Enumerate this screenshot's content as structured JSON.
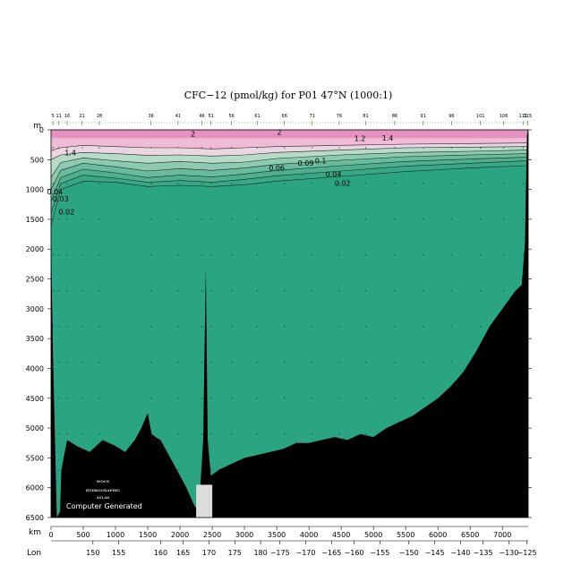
{
  "chart_data": {
    "type": "heatmap",
    "title": "CFC−12 (pmol/kg) for P01 47°N (1000:1)",
    "ylabel": "m",
    "xlabel": "km",
    "lon_label": "Lon",
    "ylim": [
      6500,
      0
    ],
    "xlim": [
      0,
      7400
    ],
    "depth_ticks": [
      "0",
      "500",
      "1000",
      "1500",
      "2000",
      "2500",
      "3000",
      "3500",
      "4000",
      "4500",
      "5000",
      "5500",
      "6000",
      "6500"
    ],
    "km_ticks": [
      "0",
      "500",
      "1000",
      "1500",
      "2000",
      "2500",
      "3000",
      "3500",
      "4000",
      "4500",
      "5000",
      "5500",
      "6000",
      "6500",
      "7000"
    ],
    "lon_ticks": [
      {
        "label": "150",
        "km": 650
      },
      {
        "label": "155",
        "km": 1050
      },
      {
        "label": "160",
        "km": 1700
      },
      {
        "label": "165",
        "km": 2050
      },
      {
        "label": "170",
        "km": 2450
      },
      {
        "label": "175",
        "km": 2850
      },
      {
        "label": "180",
        "km": 3250
      },
      {
        "label": "−175",
        "km": 3550
      },
      {
        "label": "−170",
        "km": 3950
      },
      {
        "label": "−165",
        "km": 4350
      },
      {
        "label": "−160",
        "km": 4700
      },
      {
        "label": "−155",
        "km": 5100
      },
      {
        "label": "−150",
        "km": 5550
      },
      {
        "label": "−145",
        "km": 5950
      },
      {
        "label": "−140",
        "km": 6350
      },
      {
        "label": "−135",
        "km": 6700
      },
      {
        "label": "−130",
        "km": 7100
      },
      {
        "label": "−125",
        "km": 7380
      }
    ],
    "station_labels": [
      {
        "label": "5",
        "km": 30
      },
      {
        "label": "11",
        "km": 120
      },
      {
        "label": "16",
        "km": 250
      },
      {
        "label": "21",
        "km": 480
      },
      {
        "label": "28",
        "km": 750
      },
      {
        "label": "36",
        "km": 1550
      },
      {
        "label": "41",
        "km": 1970
      },
      {
        "label": "46",
        "km": 2340
      },
      {
        "label": "51",
        "km": 2480
      },
      {
        "label": "56",
        "km": 2800
      },
      {
        "label": "61",
        "km": 3200
      },
      {
        "label": "66",
        "km": 3620
      },
      {
        "label": "71",
        "km": 4050
      },
      {
        "label": "76",
        "km": 4470
      },
      {
        "label": "81",
        "km": 4880
      },
      {
        "label": "86",
        "km": 5330
      },
      {
        "label": "91",
        "km": 5770
      },
      {
        "label": "96",
        "km": 6210
      },
      {
        "label": "101",
        "km": 6660
      },
      {
        "label": "106",
        "km": 7020
      },
      {
        "label": "111",
        "km": 7320
      },
      {
        "label": "115",
        "km": 7390
      }
    ],
    "contour_labels": [
      {
        "label": "2",
        "km": 2200,
        "depth": 110
      },
      {
        "label": "2",
        "km": 3540,
        "depth": 80
      },
      {
        "label": "1.4",
        "km": 300,
        "depth": 430
      },
      {
        "label": "1.4",
        "km": 5220,
        "depth": 180
      },
      {
        "label": "1.2",
        "km": 4790,
        "depth": 190
      },
      {
        "label": "0.06",
        "km": 3500,
        "depth": 680
      },
      {
        "label": "0.09",
        "km": 3950,
        "depth": 600
      },
      {
        "label": "0.1",
        "km": 4180,
        "depth": 560
      },
      {
        "label": "0.04",
        "km": 4380,
        "depth": 790
      },
      {
        "label": "0.02",
        "km": 4520,
        "depth": 940
      },
      {
        "label": "0.04",
        "km": 60,
        "depth": 1080
      },
      {
        "label": "0.03",
        "km": 150,
        "depth": 1200
      },
      {
        "label": "0.02",
        "km": 240,
        "depth": 1420
      }
    ],
    "colors": {
      "deep": "#2ba482",
      "bands": [
        "#2ba482",
        "#37a886",
        "#4cb08f",
        "#68bc9e",
        "#8ccbb1",
        "#b6dbc7",
        "#ead6e1",
        "#f0bbd6",
        "#e591c1"
      ],
      "bathymetry": "#000000",
      "missing": "#dcdcdc"
    },
    "bathymetry_km": [
      0,
      30,
      90,
      140,
      160,
      250,
      400,
      600,
      800,
      1000,
      1150,
      1300,
      1400,
      1500,
      1560,
      1620,
      1700,
      1800,
      1900,
      2000,
      2100,
      2200,
      2280,
      2320,
      2360,
      2400,
      2430,
      2480,
      2600,
      2800,
      3000,
      3200,
      3400,
      3600,
      3800,
      4000,
      4200,
      4400,
      4600,
      4800,
      5000,
      5200,
      5400,
      5600,
      5800,
      6000,
      6200,
      6400,
      6600,
      6800,
      7000,
      7200,
      7300,
      7350,
      7380
    ],
    "bathymetry_depth": [
      1800,
      3800,
      6500,
      6400,
      5700,
      5200,
      5300,
      5400,
      5200,
      5300,
      5400,
      5200,
      5000,
      4750,
      5100,
      5150,
      5200,
      5400,
      5600,
      5800,
      6000,
      6250,
      6400,
      5900,
      5200,
      2300,
      5200,
      5800,
      5700,
      5600,
      5500,
      5450,
      5400,
      5350,
      5250,
      5250,
      5200,
      5150,
      5200,
      5100,
      5150,
      5000,
      4900,
      4800,
      4650,
      4500,
      4300,
      4050,
      3700,
      3300,
      3000,
      2700,
      2600,
      1900,
      100
    ],
    "contour_lines": [
      {
        "depths": [
          350,
          300,
          260,
          280,
          300,
          300,
          320,
          300,
          280,
          260,
          240,
          230,
          220
        ]
      },
      {
        "depths": [
          500,
          420,
          380,
          400,
          430,
          420,
          440,
          420,
          380,
          340,
          300,
          290,
          280
        ]
      },
      {
        "depths": [
          800,
          550,
          470,
          520,
          560,
          530,
          560,
          540,
          480,
          420,
          380,
          360,
          340
        ]
      },
      {
        "depths": [
          1000,
          680,
          560,
          620,
          690,
          650,
          680,
          640,
          580,
          510,
          450,
          420,
          400
        ]
      },
      {
        "depths": [
          1200,
          800,
          660,
          720,
          800,
          760,
          790,
          740,
          680,
          600,
          530,
          490,
          460
        ]
      },
      {
        "depths": [
          1400,
          900,
          760,
          810,
          880,
          850,
          880,
          830,
          770,
          690,
          610,
          560,
          520
        ]
      },
      {
        "depths": [
          1600,
          1000,
          860,
          880,
          950,
          930,
          950,
          920,
          860,
          780,
          700,
          640,
          600
        ]
      }
    ],
    "contour_km": [
      0,
      150,
      500,
      1000,
      1500,
      2000,
      2500,
      3000,
      3500,
      4500,
      5500,
      6500,
      7380
    ]
  },
  "logo": {
    "line1": "WOCE",
    "line2": "HYDROGRAPHIC",
    "line3": "ATLAS",
    "footer": "Computer Generated"
  }
}
